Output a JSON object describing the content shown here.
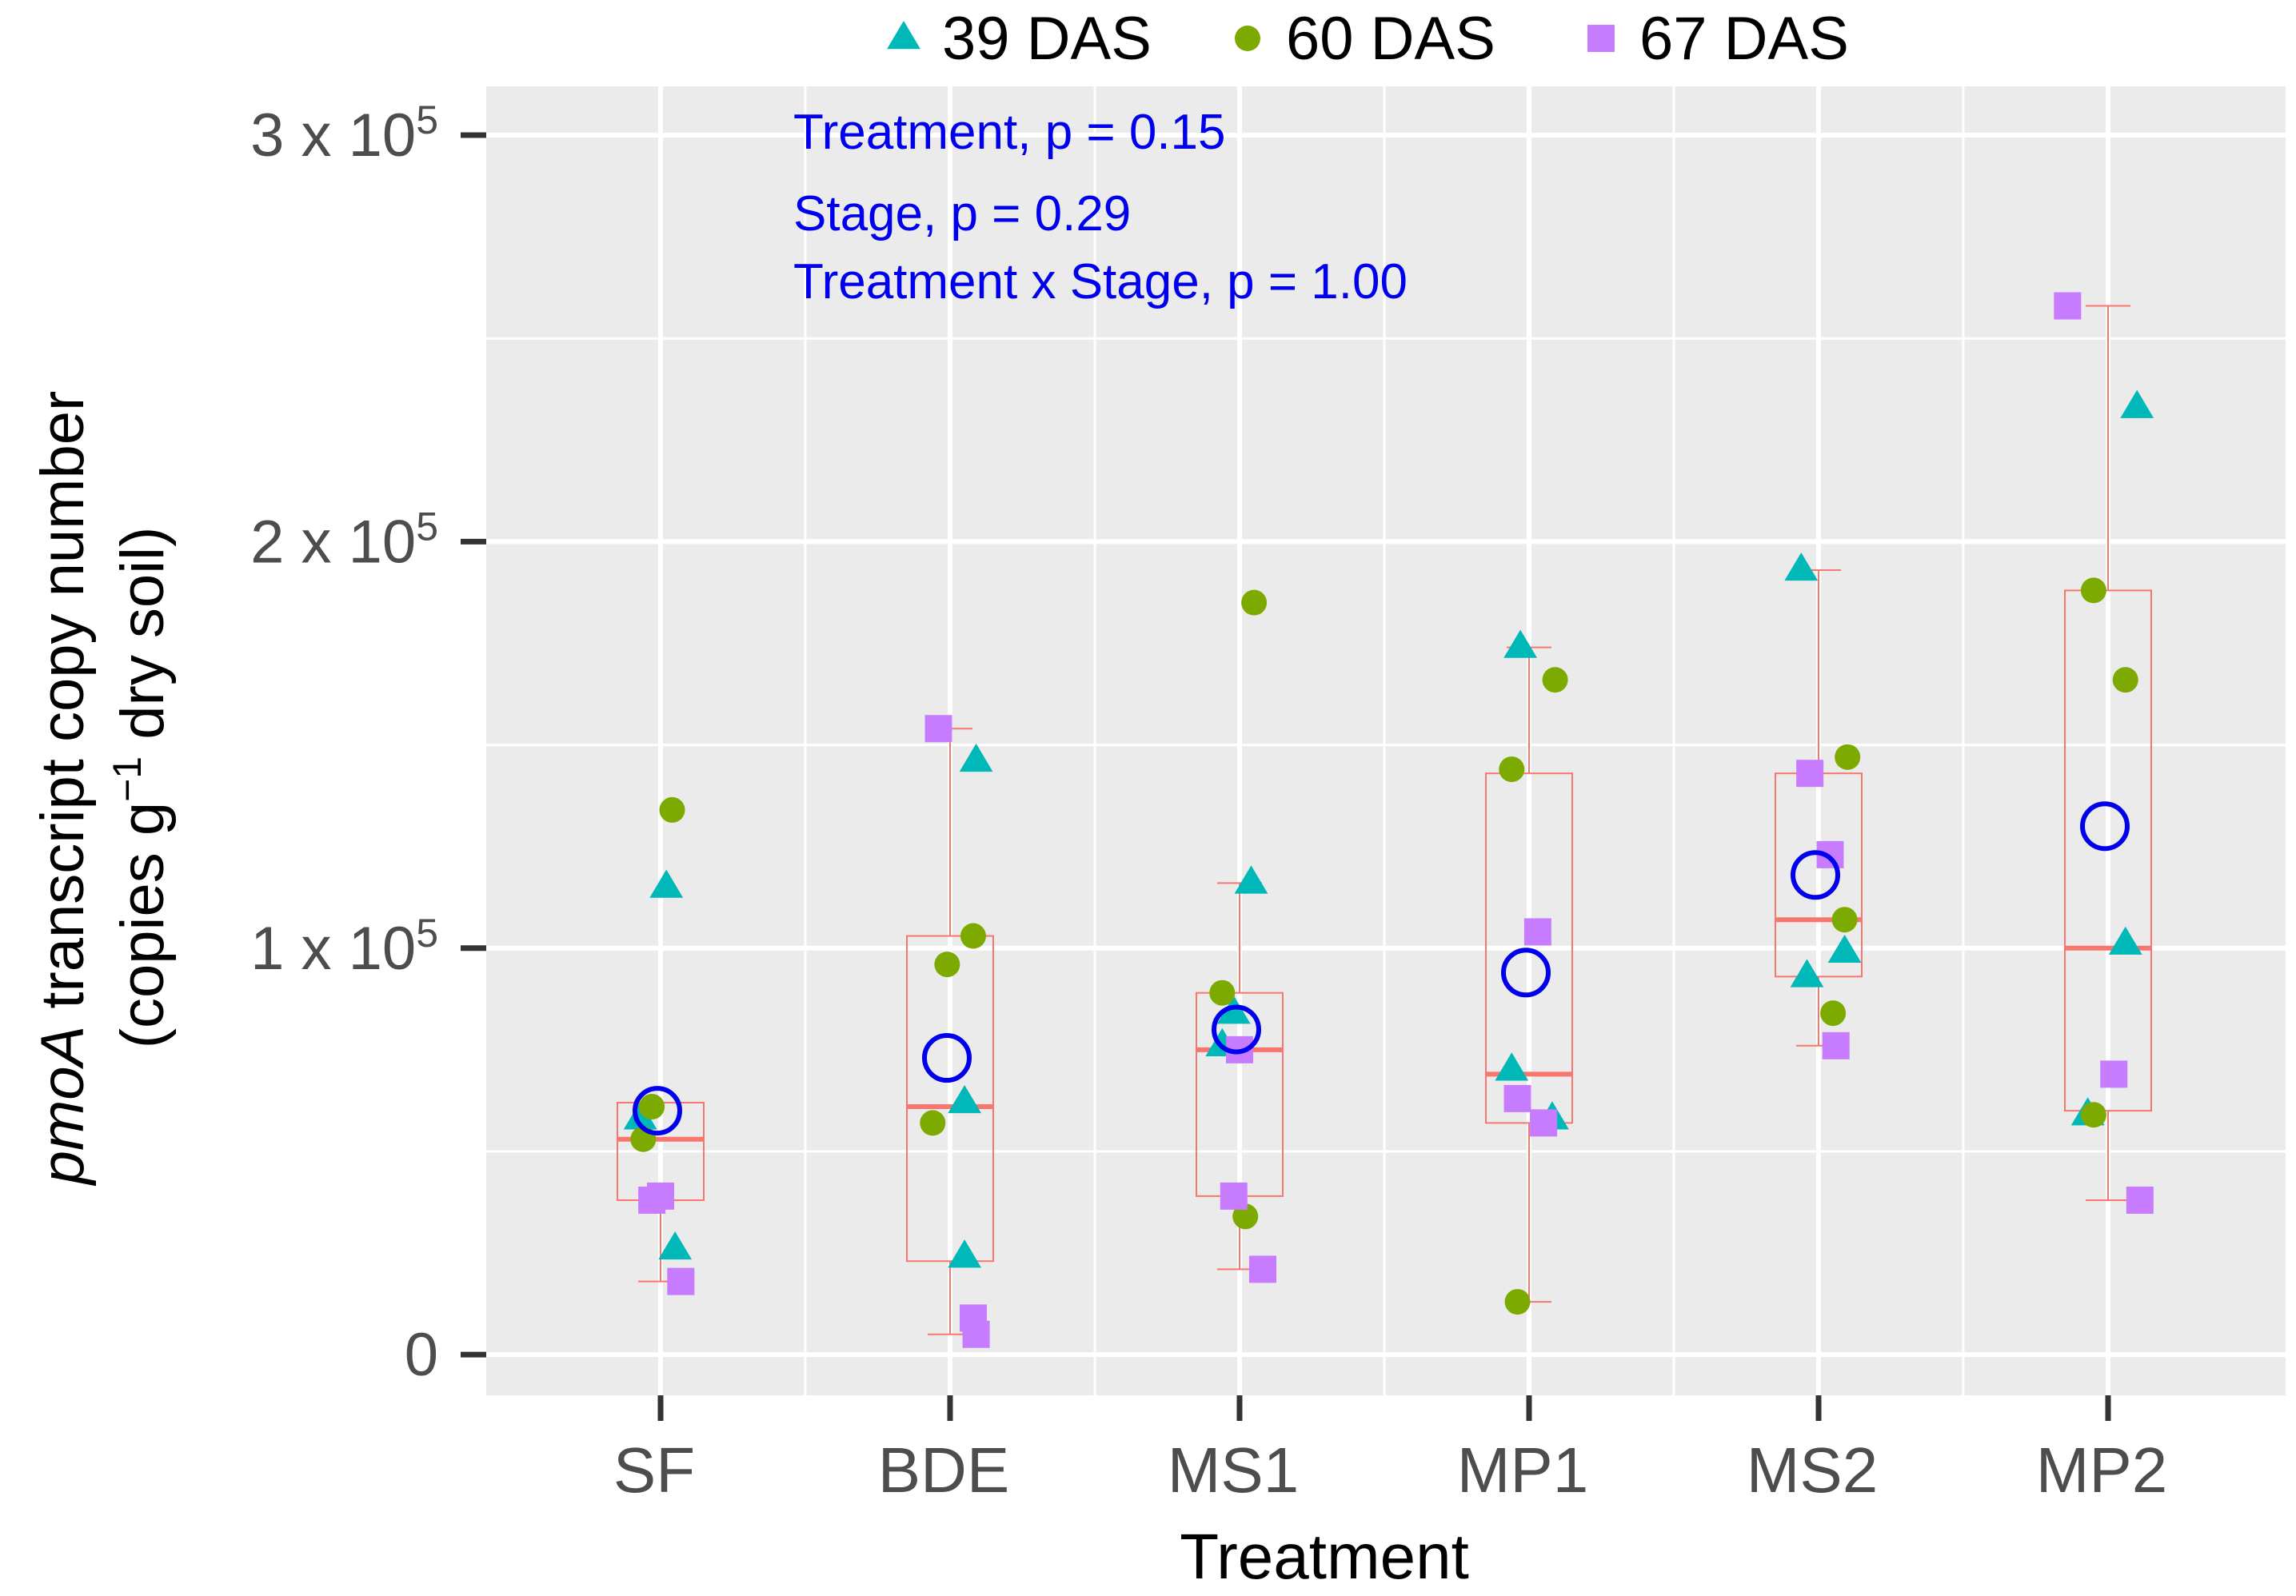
{
  "chart_data": {
    "type": "scatter",
    "subtype": "box-with-jitter",
    "title": "",
    "xlabel": "Treatment",
    "ylabel": {
      "line1_italic": "pmoA",
      "line1_rest": " transcript copy number",
      "line2_a": "(copies g",
      "line2_sup": "−1",
      "line2_b": " dry soil)"
    },
    "ylim": [
      -10000,
      312000
    ],
    "yticks": [
      {
        "value": 0,
        "base": "0",
        "exp": ""
      },
      {
        "value": 100000,
        "base": "1 x 10",
        "exp": "5"
      },
      {
        "value": 200000,
        "base": "2 x 10",
        "exp": "5"
      },
      {
        "value": 300000,
        "base": "3 x 10",
        "exp": "5"
      }
    ],
    "minor_gridlines": [
      50000,
      150000,
      250000
    ],
    "grid": true,
    "categories": [
      "SF",
      "BDE",
      "MS1",
      "MP1",
      "MS2",
      "MP2"
    ],
    "legend": {
      "position": "top",
      "entries": [
        {
          "label": "39 DAS",
          "shape": "triangle",
          "color": "#00B8B8"
        },
        {
          "label": "60 DAS",
          "shape": "circle",
          "color": "#7CAA00"
        },
        {
          "label": "67 DAS",
          "shape": "square",
          "color": "#C77CFF"
        }
      ]
    },
    "annotations": [
      "Treatment, p = 0.15",
      "Stage, p = 0.29",
      "Treatment x Stage, p = 1.00"
    ],
    "colors": {
      "panel": "#EBEBEB",
      "grid": "#FFFFFF",
      "box": "#F8766D",
      "mean": "#0000EE",
      "annotation": "#0000EE",
      "axis_text": "#4D4D4D"
    },
    "boxes": [
      {
        "category": "SF",
        "whisker_low": 18000,
        "q1": 38000,
        "median": 53000,
        "q3": 62000,
        "whisker_high": 62000,
        "mean": 60000
      },
      {
        "category": "BDE",
        "whisker_low": 5000,
        "q1": 23000,
        "median": 61000,
        "q3": 103000,
        "whisker_high": 154000,
        "mean": 73000
      },
      {
        "category": "MS1",
        "whisker_low": 21000,
        "q1": 39000,
        "median": 75000,
        "q3": 89000,
        "whisker_high": 116000,
        "mean": 80000
      },
      {
        "category": "MP1",
        "whisker_low": 13000,
        "q1": 57000,
        "median": 69000,
        "q3": 143000,
        "whisker_high": 174000,
        "mean": 94000
      },
      {
        "category": "MS2",
        "whisker_low": 76000,
        "q1": 93000,
        "median": 107000,
        "q3": 143000,
        "whisker_high": 193000,
        "mean": 118000
      },
      {
        "category": "MP2",
        "whisker_low": 38000,
        "q1": 60000,
        "median": 100000,
        "q3": 188000,
        "whisker_high": 258000,
        "mean": 130000
      }
    ],
    "series": [
      {
        "name": "39 DAS",
        "shape": "triangle",
        "points": [
          {
            "category": "SF",
            "jitter": 0.02,
            "y": 115000
          },
          {
            "category": "SF",
            "jitter": 0.05,
            "y": 26000
          },
          {
            "category": "SF",
            "jitter": -0.07,
            "y": 58000
          },
          {
            "category": "BDE",
            "jitter": 0.09,
            "y": 146000
          },
          {
            "category": "BDE",
            "jitter": 0.05,
            "y": 62000
          },
          {
            "category": "BDE",
            "jitter": 0.05,
            "y": 24000
          },
          {
            "category": "MS1",
            "jitter": 0.04,
            "y": 116000
          },
          {
            "category": "MS1",
            "jitter": -0.06,
            "y": 76000
          },
          {
            "category": "MS1",
            "jitter": -0.02,
            "y": 84000
          },
          {
            "category": "MP1",
            "jitter": -0.03,
            "y": 174000
          },
          {
            "category": "MP1",
            "jitter": -0.06,
            "y": 70000
          },
          {
            "category": "MP1",
            "jitter": 0.08,
            "y": 58000
          },
          {
            "category": "MS2",
            "jitter": -0.06,
            "y": 193000
          },
          {
            "category": "MS2",
            "jitter": -0.04,
            "y": 93000
          },
          {
            "category": "MS2",
            "jitter": 0.09,
            "y": 99000
          },
          {
            "category": "MP2",
            "jitter": 0.1,
            "y": 233000
          },
          {
            "category": "MP2",
            "jitter": 0.06,
            "y": 101000
          },
          {
            "category": "MP2",
            "jitter": -0.07,
            "y": 59000
          }
        ]
      },
      {
        "name": "60 DAS",
        "shape": "circle",
        "points": [
          {
            "category": "SF",
            "jitter": 0.04,
            "y": 134000
          },
          {
            "category": "SF",
            "jitter": -0.03,
            "y": 61000
          },
          {
            "category": "SF",
            "jitter": -0.06,
            "y": 53000
          },
          {
            "category": "BDE",
            "jitter": 0.08,
            "y": 103000
          },
          {
            "category": "BDE",
            "jitter": -0.01,
            "y": 96000
          },
          {
            "category": "BDE",
            "jitter": -0.06,
            "y": 57000
          },
          {
            "category": "MS1",
            "jitter": 0.05,
            "y": 185000
          },
          {
            "category": "MS1",
            "jitter": -0.06,
            "y": 89000
          },
          {
            "category": "MS1",
            "jitter": 0.02,
            "y": 34000
          },
          {
            "category": "MP1",
            "jitter": 0.09,
            "y": 166000
          },
          {
            "category": "MP1",
            "jitter": -0.06,
            "y": 144000
          },
          {
            "category": "MP1",
            "jitter": -0.04,
            "y": 13000
          },
          {
            "category": "MS2",
            "jitter": 0.1,
            "y": 147000
          },
          {
            "category": "MS2",
            "jitter": 0.09,
            "y": 107000
          },
          {
            "category": "MS2",
            "jitter": 0.05,
            "y": 84000
          },
          {
            "category": "MP2",
            "jitter": -0.05,
            "y": 188000
          },
          {
            "category": "MP2",
            "jitter": 0.06,
            "y": 166000
          },
          {
            "category": "MP2",
            "jitter": -0.05,
            "y": 59000
          }
        ]
      },
      {
        "name": "67 DAS",
        "shape": "square",
        "points": [
          {
            "category": "SF",
            "jitter": 0.0,
            "y": 39000
          },
          {
            "category": "SF",
            "jitter": -0.03,
            "y": 38000
          },
          {
            "category": "SF",
            "jitter": 0.07,
            "y": 18000
          },
          {
            "category": "BDE",
            "jitter": -0.04,
            "y": 154000
          },
          {
            "category": "BDE",
            "jitter": 0.08,
            "y": 9000
          },
          {
            "category": "BDE",
            "jitter": 0.09,
            "y": 5000
          },
          {
            "category": "MS1",
            "jitter": 0.0,
            "y": 75000
          },
          {
            "category": "MS1",
            "jitter": -0.02,
            "y": 39000
          },
          {
            "category": "MS1",
            "jitter": 0.08,
            "y": 21000
          },
          {
            "category": "MP1",
            "jitter": 0.03,
            "y": 104000
          },
          {
            "category": "MP1",
            "jitter": -0.04,
            "y": 63000
          },
          {
            "category": "MP1",
            "jitter": 0.05,
            "y": 57000
          },
          {
            "category": "MS2",
            "jitter": -0.03,
            "y": 143000
          },
          {
            "category": "MS2",
            "jitter": 0.04,
            "y": 123000
          },
          {
            "category": "MS2",
            "jitter": 0.06,
            "y": 76000
          },
          {
            "category": "MP2",
            "jitter": -0.14,
            "y": 258000
          },
          {
            "category": "MP2",
            "jitter": 0.02,
            "y": 69000
          },
          {
            "category": "MP2",
            "jitter": 0.11,
            "y": 38000
          }
        ]
      }
    ]
  }
}
